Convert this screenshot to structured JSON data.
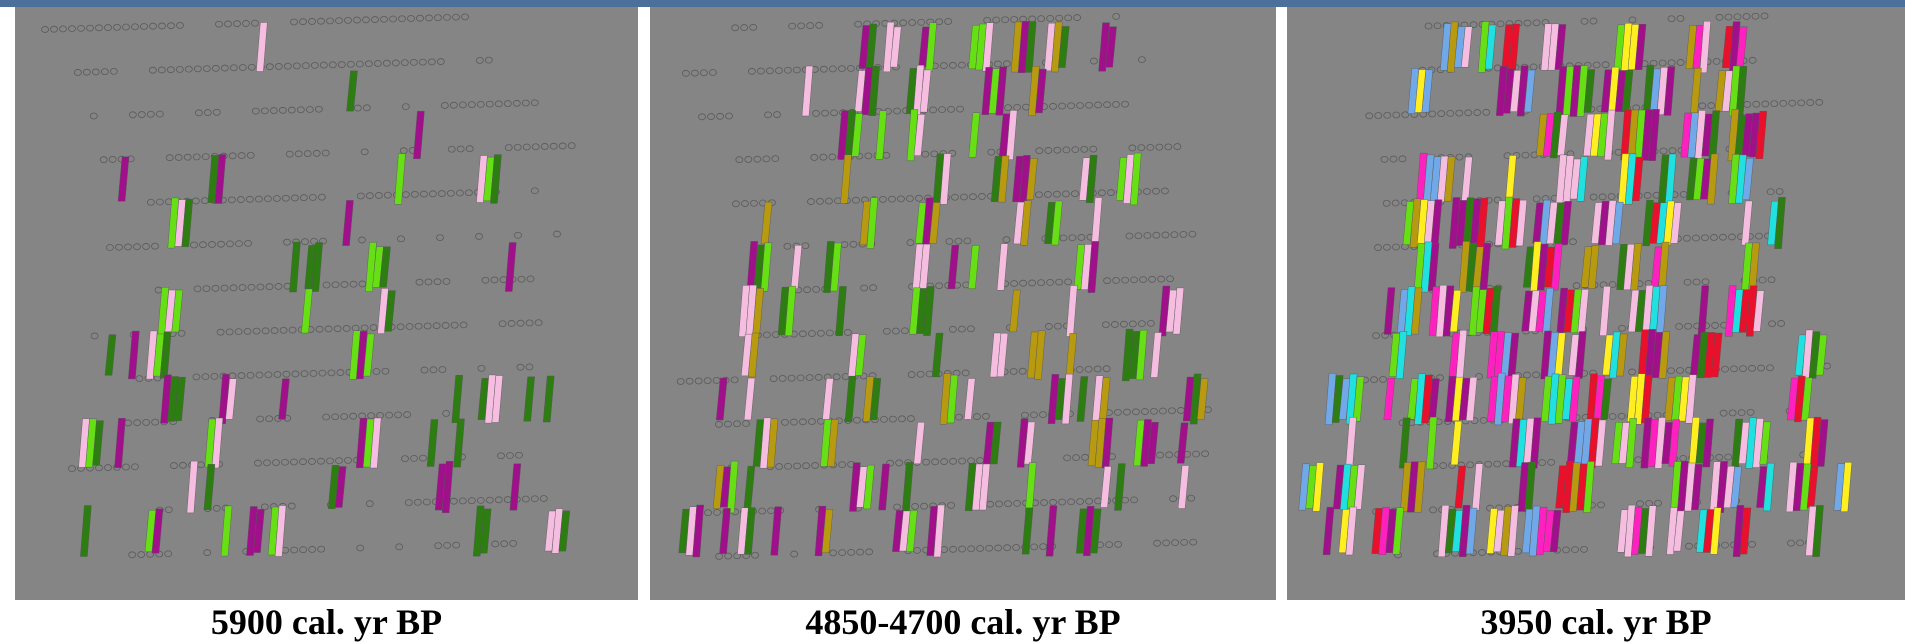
{
  "panels": [
    {
      "caption": "5900 cal. yr BP"
    },
    {
      "caption": "4850-4700 cal. yr BP"
    },
    {
      "caption": "3950 cal. yr BP"
    }
  ]
}
